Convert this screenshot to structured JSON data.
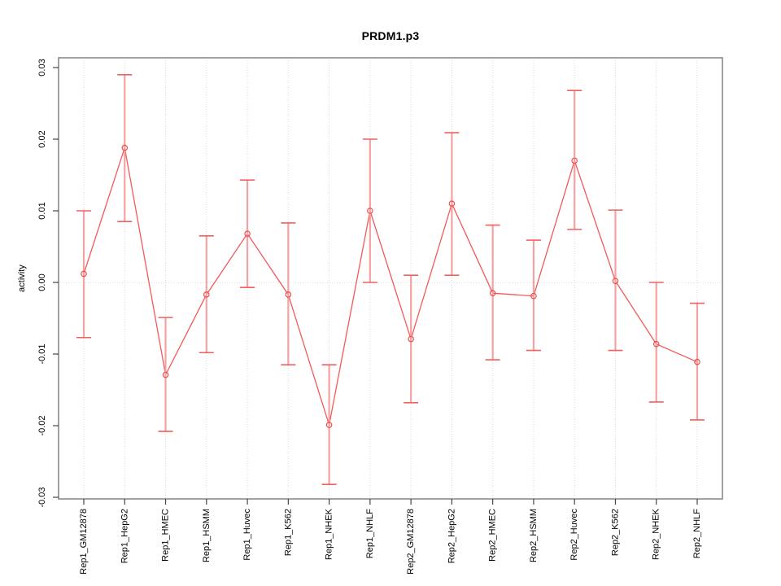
{
  "chart_data": {
    "type": "line",
    "title": "PRDM1.p3",
    "xlabel": "",
    "ylabel": "activity",
    "ylim": [
      -0.03,
      0.03
    ],
    "yticks": [
      -0.03,
      -0.02,
      -0.01,
      0,
      0.01,
      0.02,
      0.03
    ],
    "ytick_labels": [
      "-0.03",
      "-0.02",
      "-0.01",
      "0.00",
      "0.01",
      "0.02",
      "0.03"
    ],
    "grid": "dotted vertical gridline at each category; dotted horizontal line at y=0; no legend",
    "legend_position": "none",
    "categories": [
      "Rep1_GM12878",
      "Rep1_HepG2",
      "Rep1_HMEC",
      "Rep1_HSMM",
      "Rep1_Huvec",
      "Rep1_K562",
      "Rep1_NHEK",
      "Rep1_NHLF",
      "Rep2_GM12878",
      "Rep2_HepG2",
      "Rep2_HMEC",
      "Rep2_HSMM",
      "Rep2_Huvec",
      "Rep2_K562",
      "Rep2_NHEK",
      "Rep2_NHLF"
    ],
    "series": [
      {
        "name": "activity",
        "marker": "open-circle",
        "values": [
          0.0012,
          0.0188,
          -0.0129,
          -0.0017,
          0.0068,
          -0.0017,
          -0.0199,
          0.01,
          -0.0079,
          0.011,
          -0.0015,
          -0.0019,
          0.017,
          0.0002,
          -0.0086,
          -0.0111
        ],
        "err_lo": [
          -0.0077,
          0.0085,
          -0.0208,
          -0.0098,
          -0.0007,
          -0.0115,
          -0.0282,
          0.0,
          -0.0168,
          0.001,
          -0.0108,
          -0.0095,
          0.0074,
          -0.0095,
          -0.0167,
          -0.0192
        ],
        "err_hi": [
          0.01,
          0.029,
          -0.0049,
          0.0065,
          0.0143,
          0.0083,
          -0.0115,
          0.02,
          0.001,
          0.0209,
          0.008,
          0.0059,
          0.0268,
          0.0101,
          0.0,
          -0.0029
        ]
      }
    ],
    "colors": {
      "series_line": "#f15a5a",
      "error_bar": "#f7a2a2",
      "error_cap": "#f06060",
      "point": "#ee4d4d",
      "grid": "#d9d9d9",
      "frame": "#8a8a8a",
      "tick": "#444444",
      "text": "#000000",
      "background": "#ffffff"
    }
  }
}
